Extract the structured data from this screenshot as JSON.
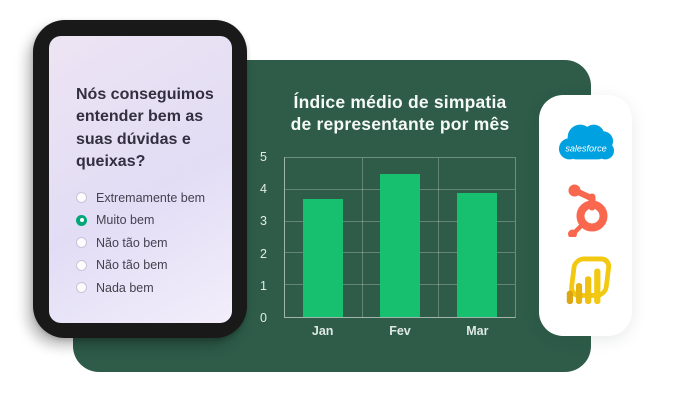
{
  "background": "#FFFFFF",
  "survey": {
    "question": "Nós conseguimos entender bem as suas dúvidas e queixas?",
    "options": [
      {
        "label": "Extremamente bem",
        "selected": false
      },
      {
        "label": "Muito bem",
        "selected": true
      },
      {
        "label": "Não tão bem",
        "selected": false
      },
      {
        "label": "Não tão bem",
        "selected": false
      },
      {
        "label": "Nada bem",
        "selected": false
      }
    ],
    "selected_color": "#00A877"
  },
  "chart_data": {
    "type": "bar",
    "title": "Índice médio de simpatia de representante por mês",
    "title_lines": [
      "Índice médio de simpatia",
      "de representante por mês"
    ],
    "categories": [
      "Jan",
      "Fev",
      "Mar"
    ],
    "values": [
      3.7,
      4.5,
      3.9
    ],
    "xlabel": "",
    "ylabel": "",
    "ylim": [
      0,
      5
    ],
    "yticks": [
      0,
      1,
      2,
      3,
      4,
      5
    ],
    "grid": true,
    "legend": "none",
    "bar_color": "#17C06F",
    "panel_color": "#2E5C49"
  },
  "integrations": {
    "logos": [
      {
        "name": "salesforce-logo",
        "label": "salesforce",
        "color": "#00A1E0"
      },
      {
        "name": "hubspot-logo",
        "color": "#F8674E"
      },
      {
        "name": "power-bi-logo",
        "color": "#F2C811"
      }
    ]
  }
}
